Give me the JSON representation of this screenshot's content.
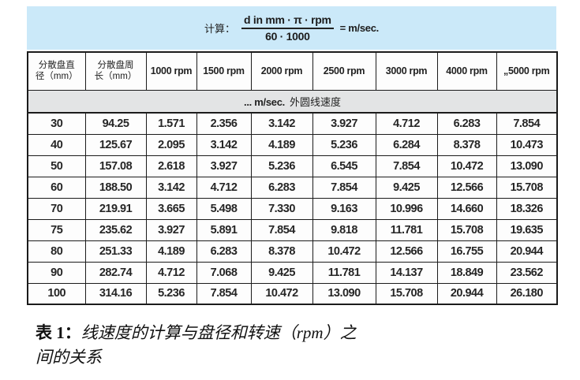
{
  "formula": {
    "label": "计算：",
    "numerator": "d in mm · π · rpm",
    "denominator": "60 · 1000",
    "result": "= m/sec."
  },
  "table": {
    "col_headers_cn": [
      {
        "line1": "分散盘直",
        "line2": "径（mm）"
      },
      {
        "line1": "分散盘周",
        "line2": "长（mm）"
      }
    ],
    "col_headers_rpm": [
      "1000 rpm",
      "1500 rpm",
      "2000 rpm",
      "2500 rpm",
      "3000 rpm",
      "4000 rpm",
      "„5000 rpm"
    ],
    "subheader": {
      "prefix": "... m/sec.",
      "text": "外圆线速度"
    },
    "rows": [
      [
        "30",
        "94.25",
        "1.571",
        "2.356",
        "3.142",
        "3.927",
        "4.712",
        "6.283",
        "7.854"
      ],
      [
        "40",
        "125.67",
        "2.095",
        "3.142",
        "4.189",
        "5.236",
        "6.284",
        "8.378",
        "10.473"
      ],
      [
        "50",
        "157.08",
        "2.618",
        "3.927",
        "5.236",
        "6.545",
        "7.854",
        "10.472",
        "13.090"
      ],
      [
        "60",
        "188.50",
        "3.142",
        "4.712",
        "6.283",
        "7.854",
        "9.425",
        "12.566",
        "15.708"
      ],
      [
        "70",
        "219.91",
        "3.665",
        "5.498",
        "7.330",
        "9.163",
        "10.996",
        "14.660",
        "18.326"
      ],
      [
        "75",
        "235.62",
        "3.927",
        "5.891",
        "7.854",
        "9.818",
        "11.781",
        "15.708",
        "19.635"
      ],
      [
        "80",
        "251.33",
        "4.189",
        "6.283",
        "8.378",
        "10.472",
        "12.566",
        "16.755",
        "20.944"
      ],
      [
        "90",
        "282.74",
        "4.712",
        "7.068",
        "9.425",
        "11.781",
        "14.137",
        "18.849",
        "23.562"
      ],
      [
        "100",
        "314.16",
        "5.236",
        "7.854",
        "10.472",
        "13.090",
        "15.708",
        "20.944",
        "26.180"
      ]
    ]
  },
  "caption": {
    "prefix": "表 1：",
    "line1": "线速度的计算与盘径和转速（rpm）之",
    "line2": "间的关系"
  },
  "colors": {
    "formula_bg": "#cbe9f9",
    "subheader_bg": "#e3e4e5",
    "border": "#1b1b1b"
  }
}
